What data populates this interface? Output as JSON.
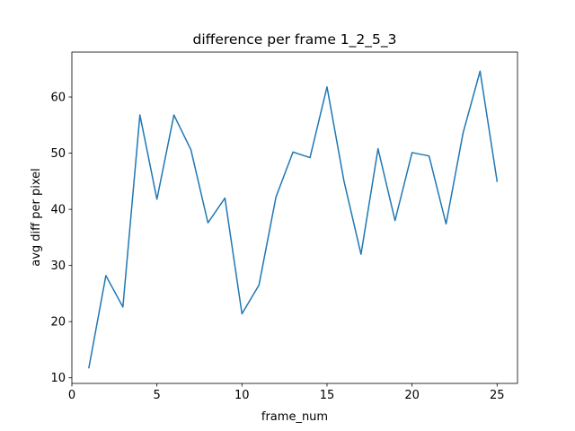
{
  "chart_data": {
    "type": "line",
    "title": "difference per frame 1_2_5_3",
    "xlabel": "frame_num",
    "ylabel": "avg diff per pixel",
    "xlim": [
      0,
      26.2
    ],
    "ylim": [
      9,
      68
    ],
    "xticks": [
      0,
      5,
      10,
      15,
      20,
      25
    ],
    "yticks": [
      10,
      20,
      30,
      40,
      50,
      60
    ],
    "grid": false,
    "series_color": "#1f77b4",
    "series": [
      {
        "x": [
          1,
          2,
          3,
          4,
          5,
          6,
          7,
          8,
          9,
          10,
          11,
          12,
          13,
          14,
          15,
          16,
          17,
          18,
          19,
          20,
          21,
          22,
          23,
          24,
          25
        ],
        "values": [
          11.8,
          28.2,
          22.6,
          56.8,
          41.8,
          56.8,
          50.6,
          37.6,
          42.0,
          21.4,
          26.5,
          42.2,
          50.2,
          49.2,
          61.8,
          45.0,
          32.0,
          50.8,
          38.0,
          50.1,
          49.5,
          37.4,
          53.6,
          64.6,
          45.0
        ]
      }
    ]
  }
}
